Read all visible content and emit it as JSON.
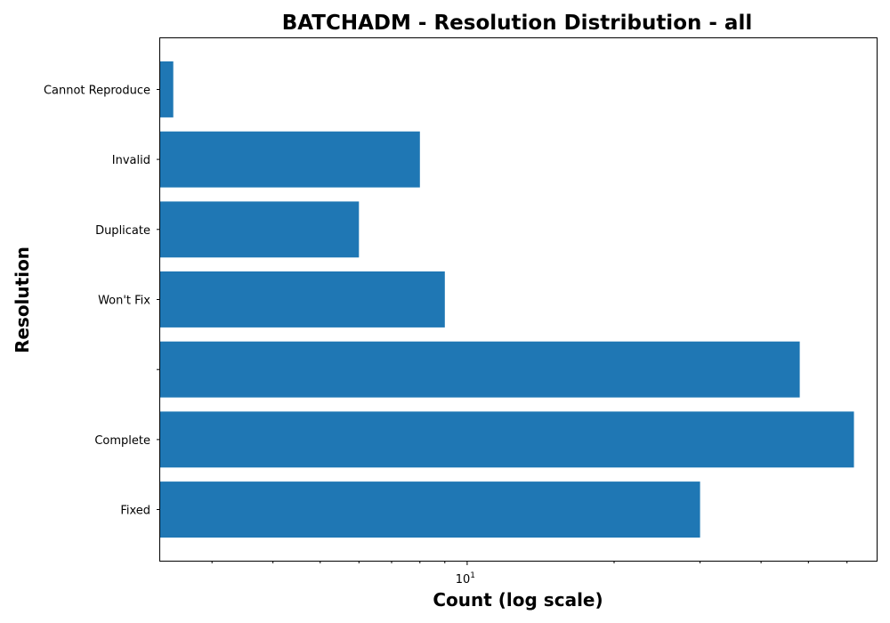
{
  "chart_data": {
    "type": "bar",
    "orientation": "horizontal",
    "title": "BATCHADM - Resolution Distribution - all",
    "xlabel": "Count (log scale)",
    "ylabel": "Resolution",
    "x_scale": "log",
    "xlim": [
      2.35,
      69
    ],
    "x_ticks": [
      {
        "base": "10",
        "exp": "1",
        "value": 10
      }
    ],
    "categories": [
      "Fixed",
      "Complete",
      "",
      "Won't Fix",
      "Duplicate",
      "Invalid",
      "Cannot Reproduce"
    ],
    "values": [
      30,
      62,
      48,
      9,
      6,
      8,
      2.5
    ],
    "color": "#1f77b4",
    "grid": false
  }
}
